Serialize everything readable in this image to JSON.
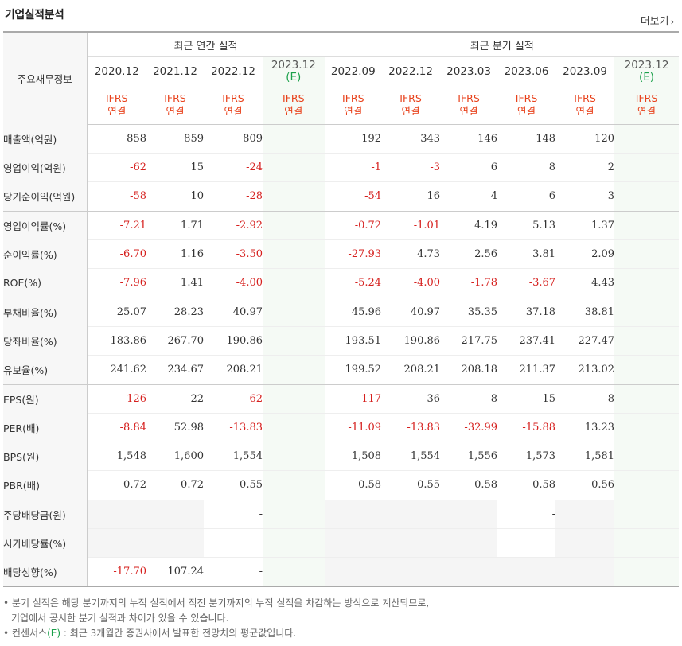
{
  "title": "기업실적분석",
  "more_link": "더보기",
  "header": {
    "label_col": "주요재무정보",
    "annual_group": "최근 연간 실적",
    "quarter_group": "최근 분기 실적",
    "annual_dates": [
      {
        "date": "2020.12",
        "est": "",
        "std1": "IFRS",
        "std2": "연결"
      },
      {
        "date": "2021.12",
        "est": "",
        "std1": "IFRS",
        "std2": "연결"
      },
      {
        "date": "2022.12",
        "est": "",
        "std1": "IFRS",
        "std2": "연결"
      },
      {
        "date": "2023.12",
        "est": "(E)",
        "std1": "IFRS",
        "std2": "연결"
      }
    ],
    "quarter_dates": [
      {
        "date": "2022.09",
        "est": "",
        "std1": "IFRS",
        "std2": "연결"
      },
      {
        "date": "2022.12",
        "est": "",
        "std1": "IFRS",
        "std2": "연결"
      },
      {
        "date": "2023.03",
        "est": "",
        "std1": "IFRS",
        "std2": "연결"
      },
      {
        "date": "2023.06",
        "est": "",
        "std1": "IFRS",
        "std2": "연결"
      },
      {
        "date": "2023.09",
        "est": "",
        "std1": "IFRS",
        "std2": "연결"
      },
      {
        "date": "2023.12",
        "est": "(E)",
        "std1": "IFRS",
        "std2": "연결"
      }
    ]
  },
  "rows": [
    {
      "label": "매출액(억원)",
      "annual": [
        "858",
        "859",
        "809",
        ""
      ],
      "quarter": [
        "192",
        "343",
        "146",
        "148",
        "120",
        ""
      ]
    },
    {
      "label": "영업이익(억원)",
      "annual": [
        "-62",
        "15",
        "-24",
        ""
      ],
      "quarter": [
        "-1",
        "-3",
        "6",
        "8",
        "2",
        ""
      ]
    },
    {
      "label": "당기순이익(억원)",
      "annual": [
        "-58",
        "10",
        "-28",
        ""
      ],
      "quarter": [
        "-54",
        "16",
        "4",
        "6",
        "3",
        ""
      ]
    },
    {
      "label": "영업이익률(%)",
      "annual": [
        "-7.21",
        "1.71",
        "-2.92",
        ""
      ],
      "quarter": [
        "-0.72",
        "-1.01",
        "4.19",
        "5.13",
        "1.37",
        ""
      ]
    },
    {
      "label": "순이익률(%)",
      "annual": [
        "-6.70",
        "1.16",
        "-3.50",
        ""
      ],
      "quarter": [
        "-27.93",
        "4.73",
        "2.56",
        "3.81",
        "2.09",
        ""
      ]
    },
    {
      "label": "ROE(%)",
      "annual": [
        "-7.96",
        "1.41",
        "-4.00",
        ""
      ],
      "quarter": [
        "-5.24",
        "-4.00",
        "-1.78",
        "-3.67",
        "4.43",
        ""
      ]
    },
    {
      "label": "부채비율(%)",
      "annual": [
        "25.07",
        "28.23",
        "40.97",
        ""
      ],
      "quarter": [
        "45.96",
        "40.97",
        "35.35",
        "37.18",
        "38.81",
        ""
      ]
    },
    {
      "label": "당좌비율(%)",
      "annual": [
        "183.86",
        "267.70",
        "190.86",
        ""
      ],
      "quarter": [
        "193.51",
        "190.86",
        "217.75",
        "237.41",
        "227.47",
        ""
      ]
    },
    {
      "label": "유보율(%)",
      "annual": [
        "241.62",
        "234.67",
        "208.21",
        ""
      ],
      "quarter": [
        "199.52",
        "208.21",
        "208.18",
        "211.37",
        "213.02",
        ""
      ]
    },
    {
      "label": "EPS(원)",
      "annual": [
        "-126",
        "22",
        "-62",
        ""
      ],
      "quarter": [
        "-117",
        "36",
        "8",
        "15",
        "8",
        ""
      ]
    },
    {
      "label": "PER(배)",
      "annual": [
        "-8.84",
        "52.98",
        "-13.83",
        ""
      ],
      "quarter": [
        "-11.09",
        "-13.83",
        "-32.99",
        "-15.88",
        "13.23",
        ""
      ]
    },
    {
      "label": "BPS(원)",
      "annual": [
        "1,548",
        "1,600",
        "1,554",
        ""
      ],
      "quarter": [
        "1,508",
        "1,554",
        "1,556",
        "1,573",
        "1,581",
        ""
      ]
    },
    {
      "label": "PBR(배)",
      "annual": [
        "0.72",
        "0.72",
        "0.55",
        ""
      ],
      "quarter": [
        "0.58",
        "0.55",
        "0.58",
        "0.58",
        "0.56",
        ""
      ]
    },
    {
      "label": "주당배당금(원)",
      "annual": [
        "",
        "",
        "-",
        ""
      ],
      "quarter": [
        "",
        "",
        "",
        "-",
        "",
        ""
      ]
    },
    {
      "label": "시가배당률(%)",
      "annual": [
        "",
        "",
        "-",
        ""
      ],
      "quarter": [
        "",
        "",
        "",
        "-",
        "",
        ""
      ]
    },
    {
      "label": "배당성향(%)",
      "annual": [
        "-17.70",
        "107.24",
        "-",
        ""
      ],
      "quarter": [
        "",
        "",
        "",
        "",
        "",
        ""
      ]
    }
  ],
  "notes": {
    "line1": "분기 실적은 해당 분기까지의 누적 실적에서 직전 분기까지의 누적 실적을 차감하는 방식으로 계산되므로,",
    "line2": "기업에서 공시한 분기 실적과 차이가 있을 수 있습니다.",
    "line3_pre": "컨센서스",
    "line3_e": "(E)",
    "line3_post": " : 최근 3개월간 증권사에서 발표한 전망치의 평균값입니다."
  },
  "colors": {
    "negative": "#d6201e",
    "ifrs": "#e8421c",
    "estimate_e": "#1aa04a",
    "estimate_bg": "#f5faf5"
  }
}
